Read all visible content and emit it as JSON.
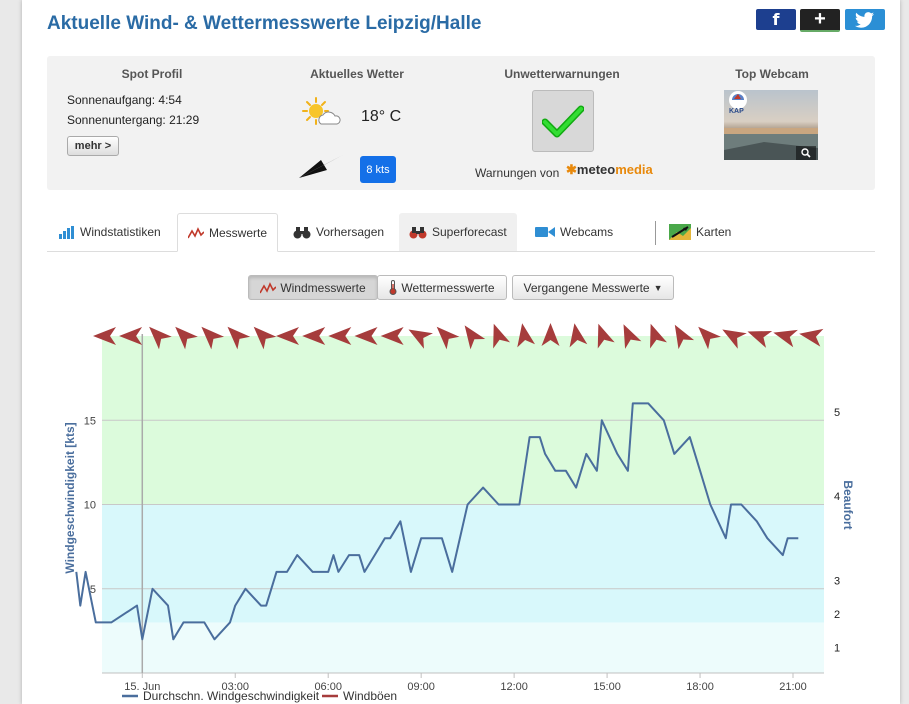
{
  "header": {
    "title": "Aktuelle Wind- & Wettermesswerte Leipzig/Halle"
  },
  "social": {
    "facebook": "f",
    "googleplus": "+",
    "twitter": "🐦"
  },
  "spot": {
    "title": "Spot Profil",
    "sunrise": "Sonnenaufgang: 4:54",
    "sunset": "Sonnenuntergang: 21:29",
    "more": "mehr >"
  },
  "weather": {
    "title": "Aktuelles Wetter",
    "temperature": "18° C",
    "wind": "8 kts"
  },
  "warnings": {
    "title": "Unwetterwarnungen",
    "from": "Warnungen von",
    "provider_prefix": "meteo",
    "provider_suffix": "media"
  },
  "webcam": {
    "title": "Top Webcam",
    "logo": "KAP"
  },
  "tabs": [
    {
      "label": "Windstatistiken",
      "icon": "bar-chart-icon"
    },
    {
      "label": "Messwerte",
      "icon": "line-chart-icon"
    },
    {
      "label": "Vorhersagen",
      "icon": "binoculars-icon"
    },
    {
      "label": "Superforecast",
      "icon": "binoculars-icon"
    },
    {
      "label": "Webcams",
      "icon": "camera-icon"
    },
    {
      "label": "Karten",
      "icon": "map-icon"
    }
  ],
  "subnav": {
    "wind": "Windmesswerte",
    "weather": "Wettermesswerte",
    "past": "Vergangene Messwerte"
  },
  "colors": {
    "accent": "#2a6ba5",
    "series": "#4a6e9d",
    "gusts": "#a63c3c",
    "band_green": "#dcfbdc",
    "band_cyan": "#d8f8fb",
    "band_light": "#edfcfc"
  },
  "chart_data": {
    "type": "line",
    "ylabel": "Windgeschwindigkeit [kts]",
    "y2label": "Beaufort",
    "ylim": [
      0,
      20
    ],
    "yticks": [
      5,
      10,
      15
    ],
    "beaufort_ticks": [
      {
        "label": "1",
        "y": 1.5
      },
      {
        "label": "2",
        "y": 3.5
      },
      {
        "label": "3",
        "y": 5.5
      },
      {
        "label": "4",
        "y": 10.5
      },
      {
        "label": "5",
        "y": 15.5
      }
    ],
    "bands": [
      {
        "from": 0,
        "to": 3,
        "color": "#edfcfc"
      },
      {
        "from": 3,
        "to": 10,
        "color": "#d8f8fb"
      },
      {
        "from": 10,
        "to": 20,
        "color": "#dcfbdc"
      }
    ],
    "xlim": [
      -1.3,
      22.0
    ],
    "xticks": [
      {
        "label": "15. Jun",
        "x": 0
      },
      {
        "label": "03:00",
        "x": 3
      },
      {
        "label": "06:00",
        "x": 6
      },
      {
        "label": "09:00",
        "x": 9
      },
      {
        "label": "12:00",
        "x": 12
      },
      {
        "label": "15:00",
        "x": 15
      },
      {
        "label": "18:00",
        "x": 18
      },
      {
        "label": "21:00",
        "x": 21
      }
    ],
    "series": [
      {
        "name": "Durchschn. Windgeschwindigkeit",
        "x": [
          -2.13,
          -2.0,
          -1.83,
          -1.5,
          -1.0,
          -0.17,
          0.0,
          0.33,
          0.83,
          1.0,
          1.33,
          1.67,
          2.0,
          2.33,
          2.83,
          3.0,
          3.33,
          3.83,
          4.0,
          4.33,
          4.67,
          5.0,
          5.5,
          6.0,
          6.17,
          6.33,
          6.67,
          7.0,
          7.17,
          7.5,
          7.83,
          8.0,
          8.33,
          8.67,
          9.0,
          9.33,
          9.67,
          10.0,
          10.5,
          11.0,
          11.5,
          12.0,
          12.17,
          12.5,
          12.83,
          13.0,
          13.33,
          13.67,
          14.0,
          14.33,
          14.67,
          14.83,
          15.33,
          15.67,
          15.83,
          16.33,
          16.83,
          17.17,
          17.67,
          18.0,
          18.33,
          18.83,
          19.0,
          19.33,
          19.83,
          20.17,
          20.67,
          20.83,
          21.0,
          21.17
        ],
        "y": [
          6,
          4,
          6,
          3,
          3,
          4,
          2,
          5,
          4,
          2,
          3,
          3,
          3,
          2,
          3,
          4,
          5,
          4,
          4,
          6,
          6,
          7,
          6,
          6,
          7,
          6,
          7,
          7,
          6,
          7,
          8,
          8,
          9,
          6,
          8,
          8,
          8,
          6,
          10,
          11,
          10,
          10,
          10,
          14,
          14,
          13,
          12,
          12,
          11,
          13,
          12,
          15,
          13,
          12,
          16,
          16,
          15,
          13,
          14,
          12,
          10,
          8,
          10,
          10,
          9,
          8,
          7,
          8,
          8,
          8
        ]
      },
      {
        "name": "Windböen",
        "x": [],
        "y": []
      }
    ],
    "arrow_angles": [
      -90,
      -90,
      -45,
      -45,
      -45,
      -45,
      -45,
      -90,
      -90,
      -90,
      -90,
      -90,
      -60,
      -45,
      -35,
      -20,
      -10,
      0,
      -10,
      -20,
      -25,
      -20,
      -30,
      -45,
      -60,
      -70,
      -75,
      -80
    ],
    "current_x": 0
  }
}
